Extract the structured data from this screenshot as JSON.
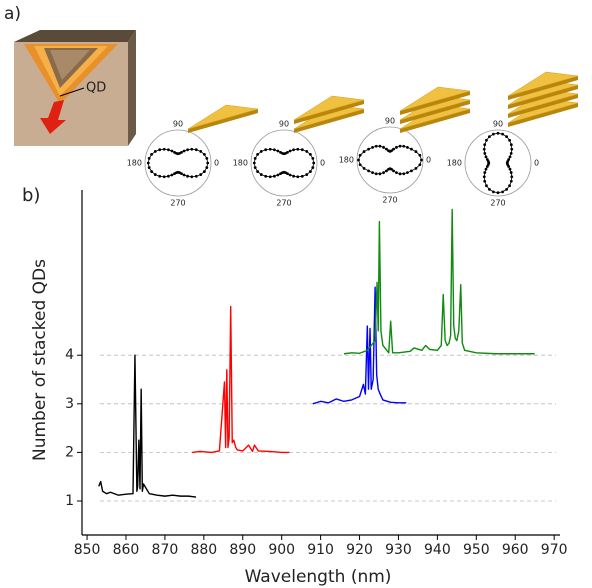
{
  "figure": {
    "panel_a": "a)",
    "panel_b": "b)",
    "qd_label": "QD",
    "polar_plots": [
      {
        "labels": [
          "90",
          "180",
          "0",
          "270"
        ]
      },
      {
        "labels": [
          "90",
          "180",
          "0",
          "270"
        ]
      },
      {
        "labels": [
          "90",
          "180",
          "0",
          "270"
        ]
      },
      {
        "labels": [
          "90",
          "180",
          "0",
          "270"
        ]
      }
    ]
  },
  "chart_data": {
    "type": "line",
    "x_label": "Wavelength (nm)",
    "y_label": "Number of stacked QDs",
    "xlim": [
      848.7,
      971.5
    ],
    "ylim": [
      0.3,
      7.4
    ],
    "xticks": [
      850,
      860,
      870,
      880,
      890,
      900,
      910,
      920,
      930,
      940,
      950,
      960,
      970
    ],
    "yticks": [
      1,
      2,
      3,
      4
    ],
    "grid": true,
    "series": [
      {
        "color": "#000000",
        "x": [
          853,
          853.5,
          854,
          855,
          856,
          858,
          860,
          861.8,
          862.3,
          862.8,
          863.0,
          863.3,
          863.6,
          863.9,
          864.2,
          864.5,
          866,
          868,
          870,
          872,
          874,
          876,
          878
        ],
        "values": [
          1.3,
          1.4,
          1.2,
          1.15,
          1.18,
          1.12,
          1.14,
          1.15,
          4.0,
          1.2,
          1.3,
          2.25,
          1.25,
          3.3,
          1.2,
          1.35,
          1.15,
          1.12,
          1.1,
          1.12,
          1.1,
          1.1,
          1.08
        ]
      },
      {
        "color": "#ff0000",
        "x": [
          877,
          879,
          882,
          884,
          885.3,
          885.6,
          885.9,
          886.2,
          886.5,
          886.9,
          887.3,
          887.7,
          888.2,
          888.6,
          890,
          891.5,
          892.5,
          893,
          894,
          897,
          900,
          902
        ],
        "values": [
          2.0,
          2.02,
          2.0,
          2.03,
          3.45,
          2.1,
          3.7,
          2.1,
          2.3,
          5.0,
          2.2,
          2.25,
          2.1,
          2.05,
          2.03,
          2.15,
          2.02,
          2.15,
          2.03,
          2.02,
          2.0,
          2.0
        ]
      },
      {
        "color": "#0000ff",
        "x": [
          908,
          910,
          912,
          914,
          916,
          918,
          920,
          921,
          921.5,
          922,
          922.3,
          922.7,
          923,
          923.5,
          924,
          924.4,
          924.8,
          925.3,
          926,
          928,
          930,
          932
        ],
        "values": [
          3.0,
          3.05,
          3.02,
          3.1,
          3.05,
          3.08,
          3.15,
          3.4,
          3.2,
          4.6,
          3.3,
          4.55,
          3.3,
          3.5,
          5.4,
          3.6,
          3.3,
          3.2,
          3.08,
          3.03,
          3.02,
          3.02
        ]
      },
      {
        "color": "#108a10",
        "x": [
          916,
          918,
          920,
          922,
          924,
          924.5,
          924.8,
          925.1,
          925.5,
          926,
          927.5,
          928,
          928.5,
          930,
          933,
          934,
          936,
          937,
          938,
          940,
          941,
          941.5,
          942,
          942.5,
          943,
          943.4,
          943.8,
          944.2,
          944.6,
          945,
          945.5,
          946,
          946.4,
          947,
          950,
          955,
          960,
          965
        ],
        "values": [
          4.03,
          4.05,
          4.04,
          4.1,
          4.3,
          5.5,
          4.5,
          6.75,
          4.5,
          4.2,
          4.05,
          4.7,
          4.05,
          4.05,
          4.08,
          4.15,
          4.1,
          4.2,
          4.12,
          4.1,
          4.2,
          5.25,
          4.3,
          4.2,
          4.25,
          4.4,
          7.0,
          4.6,
          4.35,
          4.3,
          4.5,
          5.45,
          4.25,
          4.1,
          4.05,
          4.03,
          4.03,
          4.03
        ]
      }
    ]
  }
}
